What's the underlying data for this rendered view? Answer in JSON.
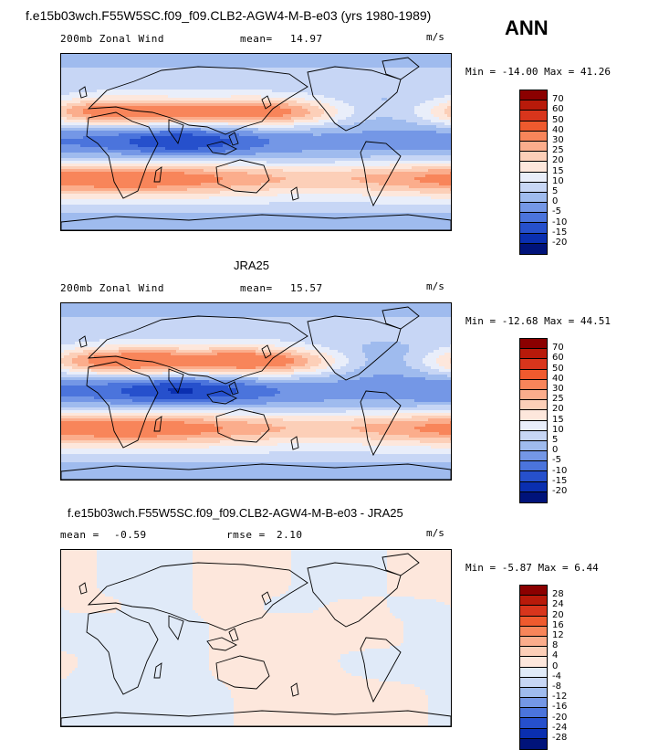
{
  "header": {
    "case_title": "f.e15b03wch.F55W5SC.f09_f09.CLB2-AGW4-M-B-e03 (yrs 1980-1989)",
    "season": "ANN"
  },
  "panels": [
    {
      "title": "",
      "field_label": "200mb Zonal Wind",
      "stat_label": "mean=",
      "stat_value": "14.97",
      "stat2_label": "",
      "stat2_value": "",
      "units": "m/s",
      "minmax": "Min = -14.00 Max = 41.26",
      "levels": [
        "70",
        "60",
        "50",
        "40",
        "30",
        "25",
        "20",
        "15",
        "10",
        "5",
        "0",
        "-5",
        "-10",
        "-15",
        "-20"
      ],
      "colors": [
        "#8b0000",
        "#b81a0a",
        "#d8351c",
        "#ef5a2e",
        "#f8855a",
        "#fbad8c",
        "#fccfb8",
        "#fde7dc",
        "#e9eefa",
        "#c7d6f5",
        "#9fbbee",
        "#7497e6",
        "#4b74dc",
        "#2650cc",
        "#0a2fb0",
        "#00137a"
      ],
      "field": "model"
    },
    {
      "title": "JRA25",
      "field_label": "200mb Zonal Wind",
      "stat_label": "mean=",
      "stat_value": "15.57",
      "stat2_label": "",
      "stat2_value": "",
      "units": "m/s",
      "minmax": "Min = -12.68 Max = 44.51",
      "levels": [
        "70",
        "60",
        "50",
        "40",
        "30",
        "25",
        "20",
        "15",
        "10",
        "5",
        "0",
        "-5",
        "-10",
        "-15",
        "-20"
      ],
      "colors": [
        "#8b0000",
        "#b81a0a",
        "#d8351c",
        "#ef5a2e",
        "#f8855a",
        "#fbad8c",
        "#fccfb8",
        "#fde7dc",
        "#e9eefa",
        "#c7d6f5",
        "#9fbbee",
        "#7497e6",
        "#4b74dc",
        "#2650cc",
        "#0a2fb0",
        "#00137a"
      ],
      "field": "obs"
    },
    {
      "title": "f.e15b03wch.F55W5SC.f09_f09.CLB2-AGW4-M-B-e03 - JRA25",
      "field_label": "",
      "stat_label": "mean =",
      "stat_value": "-0.59",
      "stat2_label": "rmse =",
      "stat2_value": "2.10",
      "units": "m/s",
      "minmax": "Min = -5.87 Max = 6.44",
      "levels": [
        "28",
        "24",
        "20",
        "16",
        "12",
        "8",
        "4",
        "0",
        "-4",
        "-8",
        "-12",
        "-16",
        "-20",
        "-24",
        "-28"
      ],
      "colors": [
        "#8b0000",
        "#b81a0a",
        "#d8351c",
        "#ef5a2e",
        "#f8855a",
        "#fbad8c",
        "#fccfb8",
        "#fde7dc",
        "#e0eaf8",
        "#c7d6f5",
        "#9fbbee",
        "#7497e6",
        "#4b74dc",
        "#2650cc",
        "#0a2fb0",
        "#00137a"
      ],
      "field": "diff"
    }
  ]
}
